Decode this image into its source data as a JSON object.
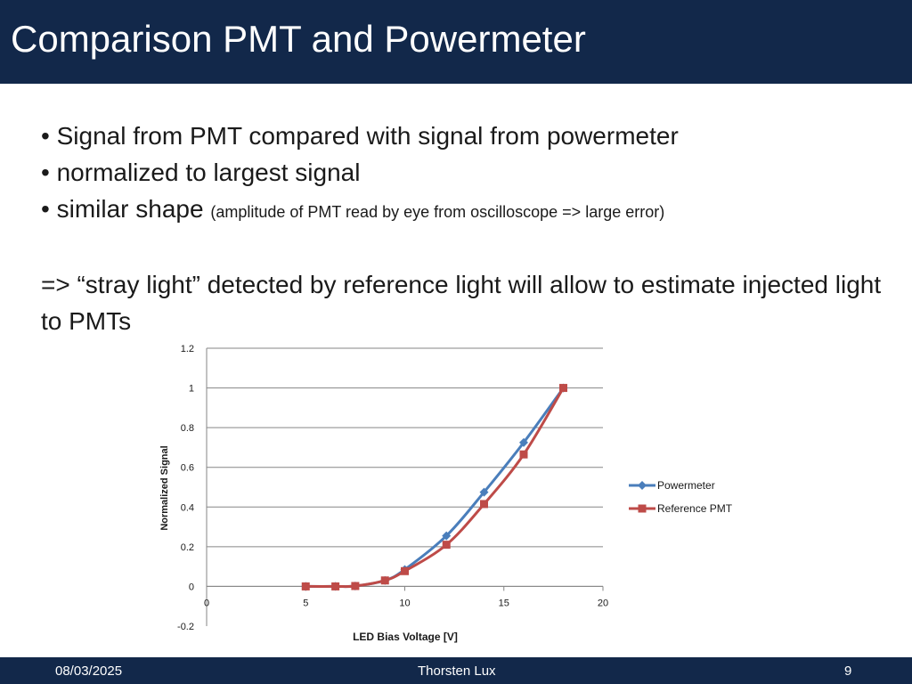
{
  "slide": {
    "title": "Comparison PMT and Powermeter",
    "bullets": [
      {
        "text": "Signal from PMT compared with signal from powermeter",
        "note": ""
      },
      {
        "text": "normalized to largest signal",
        "note": ""
      },
      {
        "text": "similar shape",
        "note": "(amplitude of PMT read by eye from oscilloscope => large error)"
      }
    ],
    "conclusion": "=> “stray light” detected by reference light will allow to estimate injected light to PMTs",
    "footer": {
      "date": "08/03/2025",
      "author": "Thorsten Lux",
      "page": "9"
    }
  },
  "chart_data": {
    "type": "line",
    "xlabel": "LED Bias Voltage [V]",
    "ylabel": "Normalized Signal",
    "xlim": [
      0,
      20
    ],
    "ylim": [
      -0.2,
      1.2
    ],
    "xticks": [
      0,
      5,
      10,
      15,
      20
    ],
    "yticks": [
      -0.2,
      0,
      0.2,
      0.4,
      0.6,
      0.8,
      1,
      1.2
    ],
    "grid": "horizontal",
    "legend_position": "right",
    "series": [
      {
        "name": "Powermeter",
        "color": "#4a7ebb",
        "marker": "diamond",
        "x": [
          5,
          6.5,
          7.5,
          9,
          10,
          12.1,
          14,
          16,
          18
        ],
        "y": [
          0,
          0,
          0.002,
          0.03,
          0.085,
          0.255,
          0.475,
          0.725,
          1.0
        ]
      },
      {
        "name": "Reference PMT",
        "color": "#be4b48",
        "marker": "square",
        "x": [
          5,
          6.5,
          7.5,
          9,
          10,
          12.1,
          14,
          16,
          18
        ],
        "y": [
          0,
          0,
          0.002,
          0.03,
          0.077,
          0.21,
          0.415,
          0.665,
          1.0
        ]
      }
    ]
  }
}
